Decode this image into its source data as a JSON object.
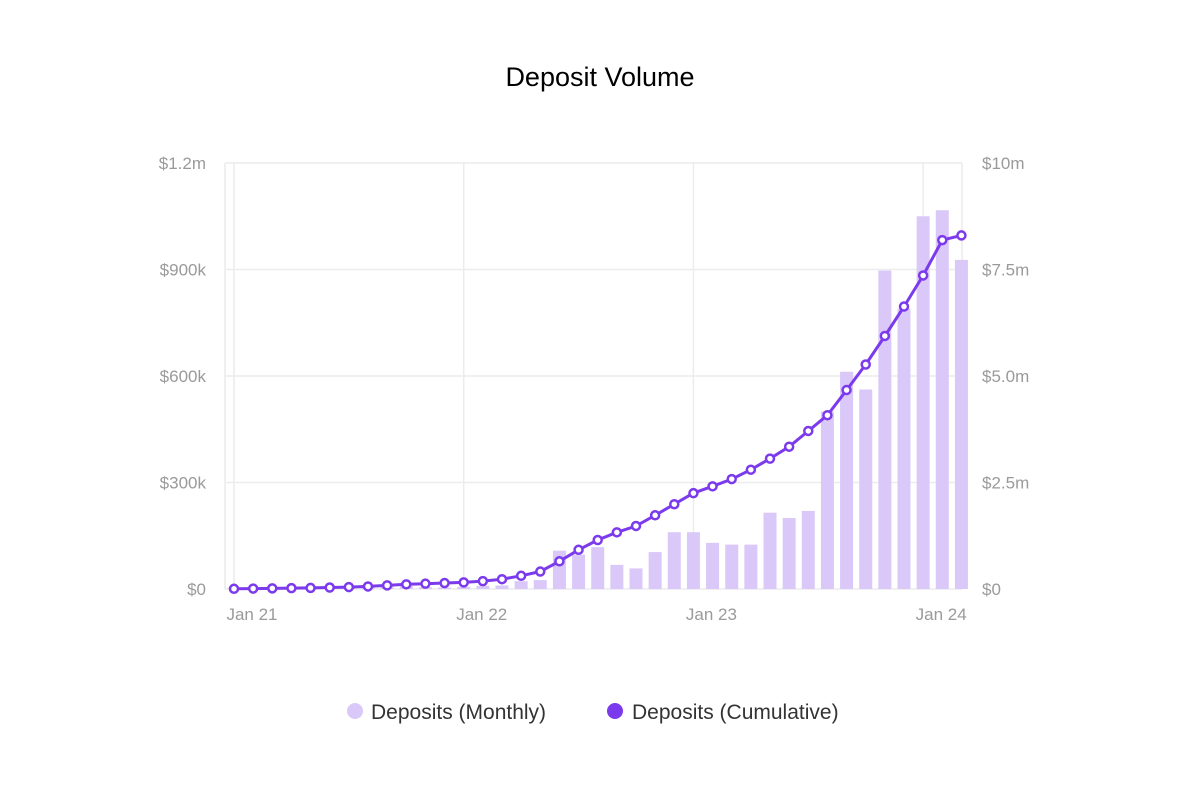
{
  "chart_data": {
    "type": "bar+line",
    "title": "Deposit Volume",
    "categories": [
      "2021-01",
      "2021-02",
      "2021-03",
      "2021-04",
      "2021-05",
      "2021-06",
      "2021-07",
      "2021-08",
      "2021-09",
      "2021-10",
      "2021-11",
      "2021-12",
      "2022-01",
      "2022-02",
      "2022-03",
      "2022-04",
      "2022-05",
      "2022-06",
      "2022-07",
      "2022-08",
      "2022-09",
      "2022-10",
      "2022-11",
      "2022-12",
      "2023-01",
      "2023-02",
      "2023-03",
      "2023-04",
      "2023-05",
      "2023-06",
      "2023-07",
      "2023-08",
      "2023-09",
      "2023-10",
      "2023-11",
      "2023-12",
      "2024-01",
      "2024-02",
      "2024-03"
    ],
    "x_tick_labels": [
      {
        "label": "Jan 21",
        "category": "2021-01"
      },
      {
        "label": "Jan 22",
        "category": "2022-01"
      },
      {
        "label": "Jan 23",
        "category": "2023-01"
      },
      {
        "label": "Jan 24",
        "category": "2024-01"
      }
    ],
    "y_left": {
      "min": 0,
      "max": 1200000,
      "ticks": [
        0,
        300000,
        600000,
        900000,
        1200000
      ],
      "tick_labels": [
        "$0",
        "$300k",
        "$600k",
        "$900k",
        "$1.2m"
      ]
    },
    "y_right": {
      "min": 0,
      "max": 10000000,
      "ticks": [
        0,
        2500000,
        5000000,
        7500000,
        10000000
      ],
      "tick_labels": [
        "$0",
        "$2.5m",
        "$5.0m",
        "$7.5m",
        "$10m"
      ]
    },
    "grid": true,
    "legend_position": "bottom-center",
    "series": [
      {
        "name": "Deposits (Monthly)",
        "type": "bar",
        "axis": "left",
        "color": "#dac8f9",
        "values": [
          2000,
          2000,
          2000,
          2000,
          2000,
          3000,
          3000,
          5000,
          7000,
          8000,
          5000,
          4000,
          6000,
          9000,
          10000,
          22000,
          25000,
          108000,
          97000,
          118000,
          68000,
          58000,
          104000,
          160000,
          160000,
          130000,
          125000,
          125000,
          215000,
          200000,
          220000,
          500000,
          612000,
          562000,
          897000,
          790000,
          1050000,
          1067000,
          927000
        ]
      },
      {
        "name": "Deposits (Cumulative)",
        "type": "line",
        "axis": "right",
        "color": "#7c3aed",
        "values": [
          5000,
          10000,
          15000,
          20000,
          25000,
          35000,
          45000,
          60000,
          85000,
          110000,
          125000,
          140000,
          155000,
          185000,
          230000,
          310000,
          410000,
          650000,
          920000,
          1150000,
          1330000,
          1480000,
          1730000,
          1990000,
          2250000,
          2410000,
          2580000,
          2800000,
          3060000,
          3340000,
          3710000,
          4080000,
          4670000,
          5270000,
          5940000,
          6630000,
          7360000,
          8190000,
          8300000
        ]
      }
    ]
  }
}
